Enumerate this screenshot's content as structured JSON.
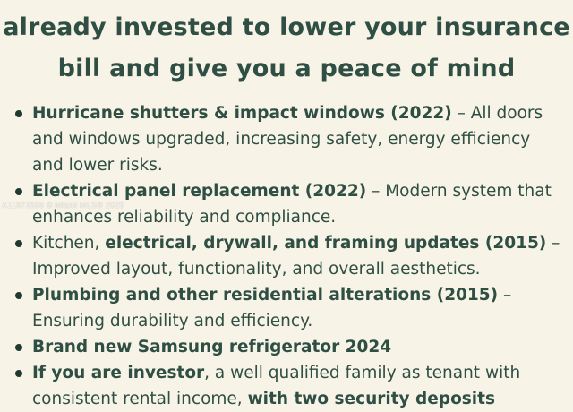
{
  "headline": {
    "line1": "already invested to lower your insurance",
    "line2": "bill and give you a peace of mind"
  },
  "bullets": [
    {
      "bold": "Hurricane shutters & impact windows (2022)",
      "text": " – All doors and windows upgraded, increasing safety, energy efficiency and lower risks."
    },
    {
      "bold": "Electrical panel replacement (2022)",
      "text": " – Modern system that enhances reliability and compliance."
    },
    {
      "pre": "Kitchen, ",
      "bold": "electrical, drywall, and framing updates (2015)",
      "text": " – Improved layout, functionality, and overall aesthetics."
    },
    {
      "bold": "Plumbing and other residential alterations (2015)",
      "text": " – Ensuring durability and efficiency."
    },
    {
      "bold": "Brand new Samsung refrigerator 2024",
      "text": ""
    },
    {
      "bold": "If you are investor",
      "text": ", a well qualified family as tenant with consistent rental income, ",
      "bold2": "with two security deposits"
    }
  ],
  "watermark": "A11873556 © Miami MLS® 2025"
}
